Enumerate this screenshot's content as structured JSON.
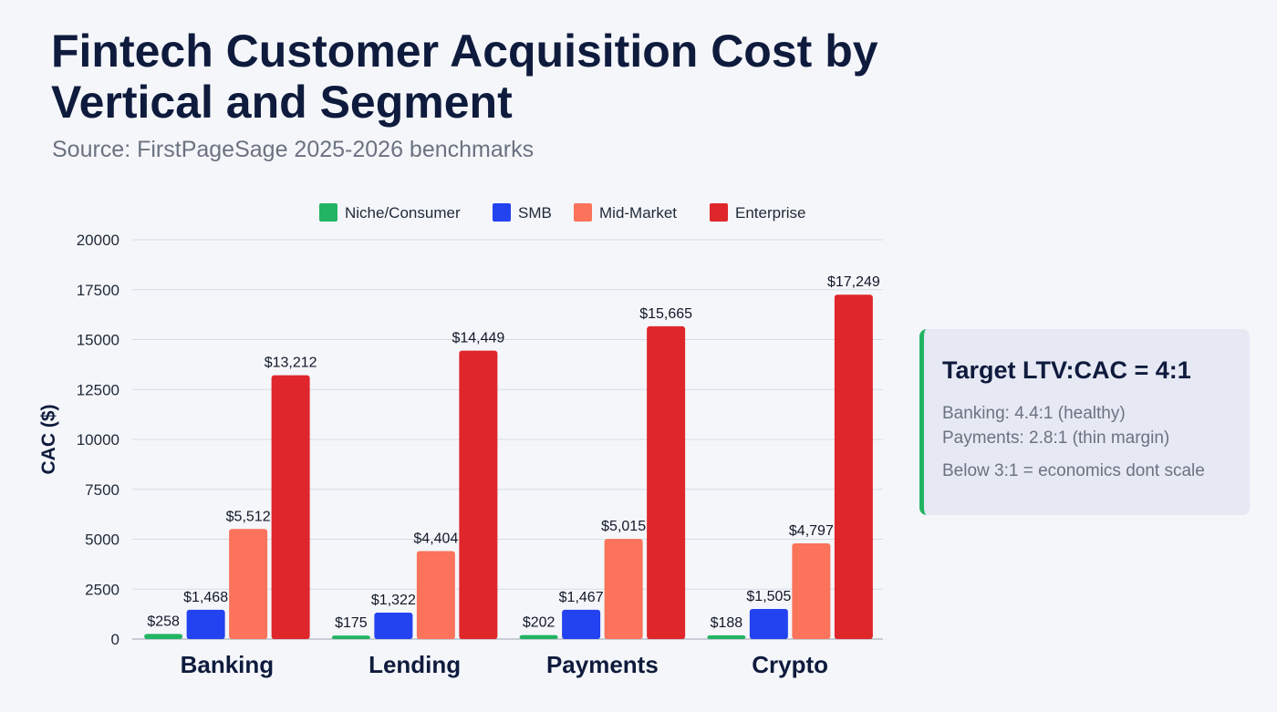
{
  "chart_data": {
    "type": "bar",
    "title": "Fintech Customer Acquisition Cost by Vertical and Segment",
    "subtitle": "Source: FirstPageSage 2025-2026 benchmarks",
    "xlabel": "",
    "ylabel": "CAC ($)",
    "ylim": [
      0,
      20000
    ],
    "yticks": [
      0,
      2500,
      5000,
      7500,
      10000,
      12500,
      15000,
      17500,
      20000
    ],
    "grid": true,
    "legend_position": "top-center",
    "categories": [
      "Banking",
      "Lending",
      "Payments",
      "Crypto"
    ],
    "series": [
      {
        "name": "Niche/Consumer",
        "color": "#22b462",
        "values": [
          258,
          175,
          202,
          188
        ],
        "labels": [
          "$258",
          "$175",
          "$202",
          "$188"
        ]
      },
      {
        "name": "SMB",
        "color": "#2342f0",
        "values": [
          1468,
          1322,
          1467,
          1505
        ],
        "labels": [
          "$1,468",
          "$1,322",
          "$1,467",
          "$1,505"
        ]
      },
      {
        "name": "Mid-Market",
        "color": "#fa735a",
        "values": [
          5512,
          4404,
          5015,
          4797
        ],
        "labels": [
          "$5,512",
          "$4,404",
          "$5,015",
          "$4,797"
        ]
      },
      {
        "name": "Enterprise",
        "color": "#df262b",
        "values": [
          13212,
          14449,
          15665,
          17249
        ],
        "labels": [
          "$13,212",
          "$14,449",
          "$15,665",
          "$17,249"
        ]
      }
    ]
  },
  "callout": {
    "title": "Target LTV:CAC = 4:1",
    "line1": "Banking: 4.4:1 (healthy)",
    "line2": "Payments: 2.8:1 (thin margin)",
    "line3": "Below 3:1 = economics dont scale"
  }
}
